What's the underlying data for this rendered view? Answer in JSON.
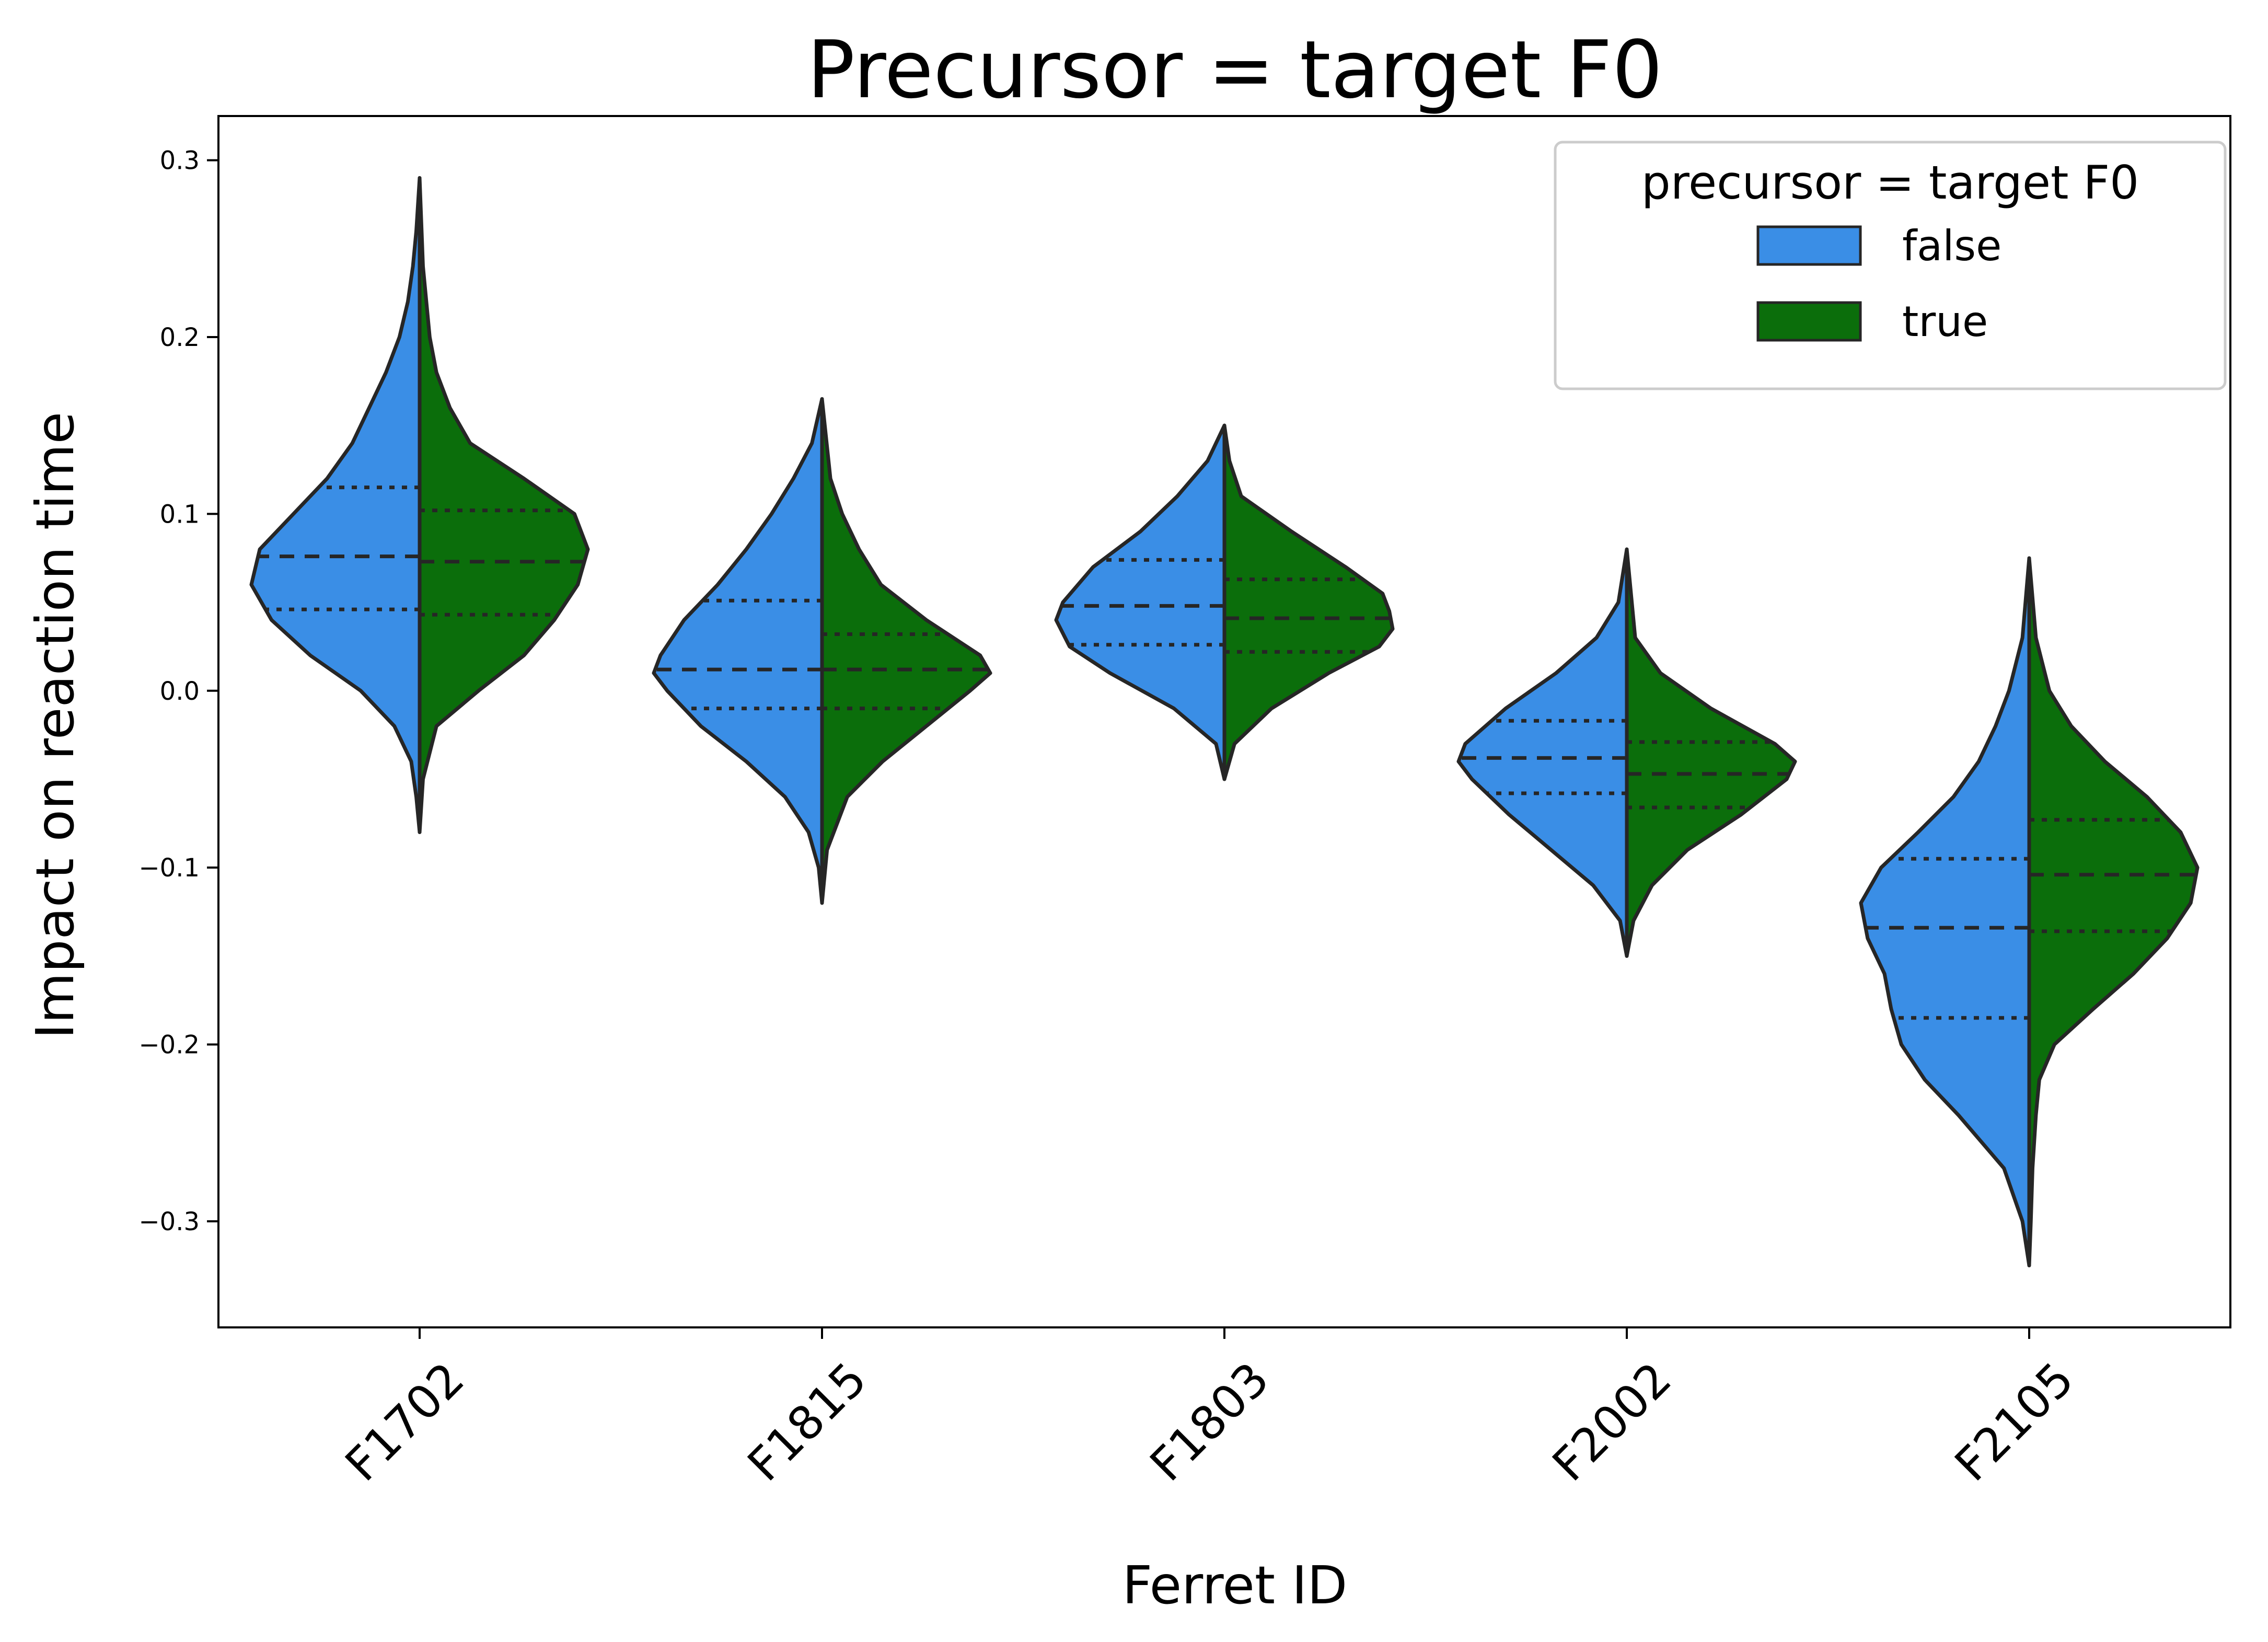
{
  "chart_data": {
    "type": "violin",
    "split": true,
    "title": "Precursor = target F0",
    "xlabel": "Ferret ID",
    "ylabel": "Impact on reaction time",
    "ylim": [
      -0.36,
      0.325
    ],
    "yticks": [
      0.3,
      0.2,
      0.1,
      0.0,
      -0.1,
      -0.2,
      -0.3
    ],
    "ytick_labels": [
      "0.3",
      "0.2",
      "0.1",
      "0.0",
      "−0.1",
      "−0.2",
      "−0.3"
    ],
    "categories": [
      "F1702",
      "F1815",
      "F1803",
      "F2002",
      "F2105"
    ],
    "legend": {
      "title": "precursor = target F0",
      "position": "top-right",
      "entries": [
        {
          "label": "false",
          "color": "#3a8ee6"
        },
        {
          "label": "true",
          "color": "#0b6e0b"
        }
      ]
    },
    "inner": "quartile",
    "series": [
      {
        "name": "false",
        "color": "#3a8ee6",
        "violins": [
          {
            "category": "F1702",
            "min": -0.08,
            "max": 0.29,
            "q1": 0.046,
            "median": 0.076,
            "q3": 0.115,
            "profile": [
              [
                -0.08,
                0
              ],
              [
                -0.06,
                0.02
              ],
              [
                -0.04,
                0.05
              ],
              [
                -0.02,
                0.15
              ],
              [
                0.0,
                0.35
              ],
              [
                0.02,
                0.65
              ],
              [
                0.04,
                0.88
              ],
              [
                0.06,
                1.0
              ],
              [
                0.08,
                0.95
              ],
              [
                0.1,
                0.75
              ],
              [
                0.12,
                0.55
              ],
              [
                0.14,
                0.4
              ],
              [
                0.16,
                0.3
              ],
              [
                0.18,
                0.2
              ],
              [
                0.2,
                0.12
              ],
              [
                0.22,
                0.07
              ],
              [
                0.24,
                0.04
              ],
              [
                0.26,
                0.02
              ],
              [
                0.29,
                0
              ]
            ]
          },
          {
            "category": "F1815",
            "min": -0.12,
            "max": 0.165,
            "q1": -0.01,
            "median": 0.012,
            "q3": 0.051,
            "profile": [
              [
                -0.12,
                0
              ],
              [
                -0.1,
                0.02
              ],
              [
                -0.08,
                0.08
              ],
              [
                -0.06,
                0.22
              ],
              [
                -0.04,
                0.45
              ],
              [
                -0.02,
                0.72
              ],
              [
                0.0,
                0.92
              ],
              [
                0.01,
                1.0
              ],
              [
                0.02,
                0.96
              ],
              [
                0.04,
                0.82
              ],
              [
                0.06,
                0.62
              ],
              [
                0.08,
                0.45
              ],
              [
                0.1,
                0.3
              ],
              [
                0.12,
                0.17
              ],
              [
                0.14,
                0.06
              ],
              [
                0.165,
                0
              ]
            ]
          },
          {
            "category": "F1803",
            "min": -0.05,
            "max": 0.15,
            "q1": 0.026,
            "median": 0.048,
            "q3": 0.074,
            "profile": [
              [
                -0.05,
                0
              ],
              [
                -0.03,
                0.05
              ],
              [
                -0.01,
                0.3
              ],
              [
                0.01,
                0.68
              ],
              [
                0.025,
                0.92
              ],
              [
                0.04,
                1.0
              ],
              [
                0.05,
                0.96
              ],
              [
                0.07,
                0.78
              ],
              [
                0.09,
                0.5
              ],
              [
                0.11,
                0.28
              ],
              [
                0.13,
                0.1
              ],
              [
                0.15,
                0
              ]
            ]
          },
          {
            "category": "F2002",
            "min": -0.15,
            "max": 0.08,
            "q1": -0.058,
            "median": -0.038,
            "q3": -0.017,
            "profile": [
              [
                -0.15,
                0
              ],
              [
                -0.13,
                0.04
              ],
              [
                -0.11,
                0.2
              ],
              [
                -0.09,
                0.45
              ],
              [
                -0.07,
                0.7
              ],
              [
                -0.05,
                0.92
              ],
              [
                -0.04,
                1.0
              ],
              [
                -0.03,
                0.96
              ],
              [
                -0.01,
                0.72
              ],
              [
                0.01,
                0.42
              ],
              [
                0.03,
                0.18
              ],
              [
                0.05,
                0.05
              ],
              [
                0.08,
                0
              ]
            ]
          },
          {
            "category": "F2105",
            "min": -0.325,
            "max": 0.075,
            "q1": -0.185,
            "median": -0.134,
            "q3": -0.095,
            "profile": [
              [
                -0.325,
                0
              ],
              [
                -0.3,
                0.04
              ],
              [
                -0.27,
                0.15
              ],
              [
                -0.24,
                0.42
              ],
              [
                -0.22,
                0.62
              ],
              [
                -0.2,
                0.76
              ],
              [
                -0.18,
                0.82
              ],
              [
                -0.16,
                0.86
              ],
              [
                -0.14,
                0.96
              ],
              [
                -0.12,
                1.0
              ],
              [
                -0.1,
                0.88
              ],
              [
                -0.08,
                0.66
              ],
              [
                -0.06,
                0.45
              ],
              [
                -0.04,
                0.3
              ],
              [
                -0.02,
                0.2
              ],
              [
                0.0,
                0.12
              ],
              [
                0.03,
                0.04
              ],
              [
                0.075,
                0
              ]
            ]
          }
        ]
      },
      {
        "name": "true",
        "color": "#0b6e0b",
        "violins": [
          {
            "category": "F1702",
            "min": -0.08,
            "max": 0.29,
            "q1": 0.043,
            "median": 0.073,
            "q3": 0.102,
            "profile": [
              [
                -0.08,
                0
              ],
              [
                -0.05,
                0.02
              ],
              [
                -0.02,
                0.1
              ],
              [
                0.0,
                0.35
              ],
              [
                0.02,
                0.62
              ],
              [
                0.04,
                0.8
              ],
              [
                0.06,
                0.94
              ],
              [
                0.08,
                1.0
              ],
              [
                0.1,
                0.92
              ],
              [
                0.12,
                0.62
              ],
              [
                0.14,
                0.3
              ],
              [
                0.16,
                0.18
              ],
              [
                0.18,
                0.1
              ],
              [
                0.2,
                0.06
              ],
              [
                0.24,
                0.02
              ],
              [
                0.29,
                0
              ]
            ]
          },
          {
            "category": "F1815",
            "min": -0.12,
            "max": 0.165,
            "q1": -0.01,
            "median": 0.012,
            "q3": 0.032,
            "profile": [
              [
                -0.12,
                0
              ],
              [
                -0.09,
                0.03
              ],
              [
                -0.06,
                0.15
              ],
              [
                -0.04,
                0.36
              ],
              [
                -0.02,
                0.62
              ],
              [
                0.0,
                0.88
              ],
              [
                0.01,
                1.0
              ],
              [
                0.02,
                0.94
              ],
              [
                0.04,
                0.62
              ],
              [
                0.06,
                0.35
              ],
              [
                0.08,
                0.22
              ],
              [
                0.1,
                0.12
              ],
              [
                0.12,
                0.05
              ],
              [
                0.165,
                0
              ]
            ]
          },
          {
            "category": "F1803",
            "min": -0.05,
            "max": 0.15,
            "q1": 0.022,
            "median": 0.041,
            "q3": 0.063,
            "profile": [
              [
                -0.05,
                0
              ],
              [
                -0.03,
                0.06
              ],
              [
                -0.01,
                0.28
              ],
              [
                0.01,
                0.62
              ],
              [
                0.025,
                0.92
              ],
              [
                0.035,
                1.0
              ],
              [
                0.045,
                0.98
              ],
              [
                0.055,
                0.94
              ],
              [
                0.07,
                0.72
              ],
              [
                0.09,
                0.4
              ],
              [
                0.11,
                0.1
              ],
              [
                0.13,
                0.03
              ],
              [
                0.15,
                0
              ]
            ]
          },
          {
            "category": "F2002",
            "min": -0.15,
            "max": 0.08,
            "q1": -0.066,
            "median": -0.047,
            "q3": -0.029,
            "profile": [
              [
                -0.15,
                0
              ],
              [
                -0.13,
                0.04
              ],
              [
                -0.11,
                0.15
              ],
              [
                -0.09,
                0.36
              ],
              [
                -0.07,
                0.68
              ],
              [
                -0.05,
                0.95
              ],
              [
                -0.04,
                1.0
              ],
              [
                -0.03,
                0.88
              ],
              [
                -0.01,
                0.5
              ],
              [
                0.01,
                0.2
              ],
              [
                0.03,
                0.05
              ],
              [
                0.08,
                0
              ]
            ]
          },
          {
            "category": "F2105",
            "min": -0.325,
            "max": 0.075,
            "q1": -0.136,
            "median": -0.104,
            "q3": -0.073,
            "profile": [
              [
                -0.325,
                0
              ],
              [
                -0.3,
                0.01
              ],
              [
                -0.27,
                0.02
              ],
              [
                -0.24,
                0.04
              ],
              [
                -0.22,
                0.06
              ],
              [
                -0.2,
                0.15
              ],
              [
                -0.18,
                0.38
              ],
              [
                -0.16,
                0.62
              ],
              [
                -0.14,
                0.82
              ],
              [
                -0.12,
                0.96
              ],
              [
                -0.1,
                1.0
              ],
              [
                -0.08,
                0.9
              ],
              [
                -0.06,
                0.7
              ],
              [
                -0.04,
                0.45
              ],
              [
                -0.02,
                0.25
              ],
              [
                0.0,
                0.12
              ],
              [
                0.03,
                0.04
              ],
              [
                0.075,
                0
              ]
            ]
          }
        ]
      }
    ]
  }
}
